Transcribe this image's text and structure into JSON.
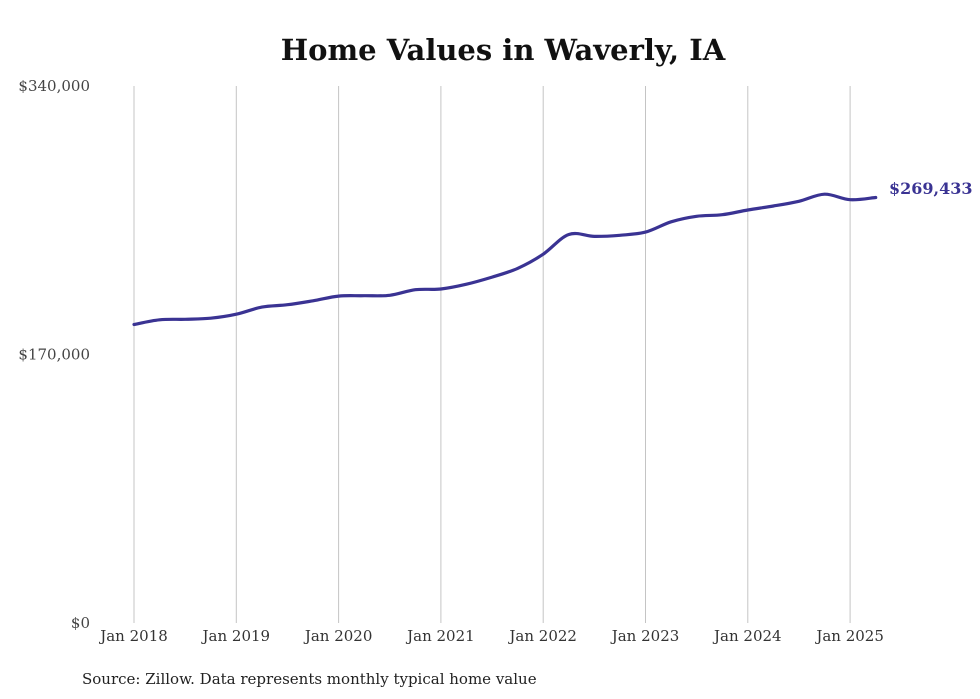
{
  "chart_data": {
    "type": "line",
    "title": "Home Values in Waverly, IA",
    "xlabel": "",
    "ylabel": "",
    "ylim": [
      0,
      340000
    ],
    "y_ticks": [
      "$0",
      "$170,000",
      "$340,000"
    ],
    "y_tick_values": [
      0,
      170000,
      340000
    ],
    "x_ticks": [
      "Jan 2018",
      "Jan 2019",
      "Jan 2020",
      "Jan 2021",
      "Jan 2022",
      "Jan 2023",
      "Jan 2024",
      "Jan 2025"
    ],
    "grid": "vertical",
    "line_color": "#3a3393",
    "end_label": "$269,433",
    "series": [
      {
        "x": [
          "2018-01",
          "2018-04",
          "2018-07",
          "2018-10",
          "2019-01",
          "2019-04",
          "2019-07",
          "2019-10",
          "2020-01",
          "2020-04",
          "2020-07",
          "2020-10",
          "2021-01",
          "2021-04",
          "2021-07",
          "2021-10",
          "2022-01",
          "2022-04",
          "2022-07",
          "2022-10",
          "2023-01",
          "2023-04",
          "2023-07",
          "2023-10",
          "2024-01",
          "2024-04",
          "2024-07",
          "2024-10",
          "2025-01",
          "2025-04"
        ],
        "values": [
          189000,
          192000,
          192300,
          193000,
          195500,
          200000,
          201500,
          204000,
          207000,
          207200,
          207500,
          211000,
          211500,
          214500,
          219000,
          224500,
          233500,
          246000,
          244800,
          245500,
          247500,
          254000,
          257500,
          258500,
          261500,
          264000,
          267000,
          271500,
          268000,
          269433
        ]
      }
    ]
  },
  "footer": {
    "source": "Source: Zillow. Data represents monthly typical home value"
  }
}
